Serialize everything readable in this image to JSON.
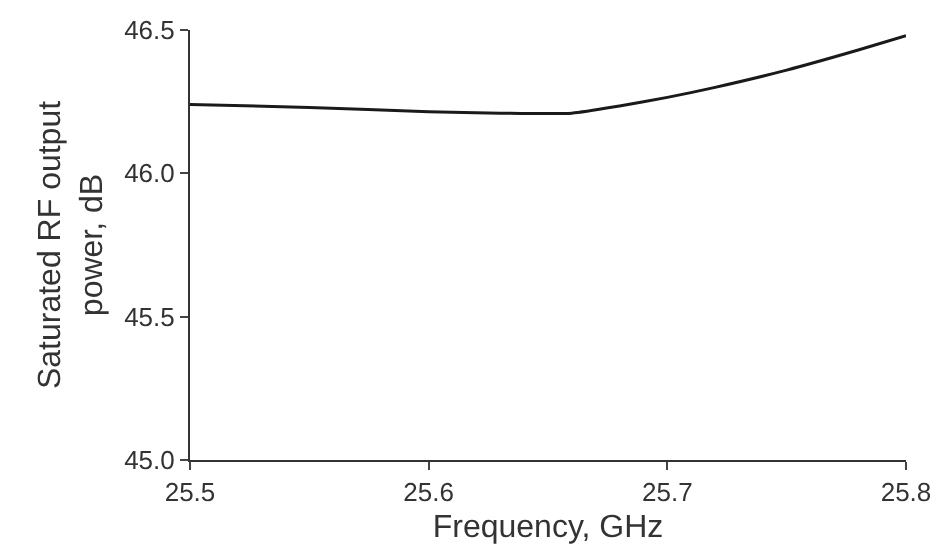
{
  "chart_data": {
    "type": "line",
    "xlabel": "Frequency, GHz",
    "ylabel": "Saturated RF output\npower, dB",
    "x": [
      25.5,
      25.55,
      25.6,
      25.63,
      25.66,
      25.68,
      25.7,
      25.72,
      25.75,
      25.78,
      25.8
    ],
    "series": [
      {
        "color": "#1a1a1a",
        "values": [
          46.24,
          46.23,
          46.215,
          46.21,
          46.21,
          46.235,
          46.265,
          46.3,
          46.36,
          46.43,
          46.48
        ]
      }
    ],
    "xlim": [
      25.5,
      25.8
    ],
    "ylim": [
      45.0,
      46.5
    ],
    "xticks": [
      25.5,
      25.6,
      25.7,
      25.8
    ],
    "yticks": [
      {
        "value": 45.0,
        "label": "45.0"
      },
      {
        "value": 45.5,
        "label": "45.5"
      },
      {
        "value": 46.0,
        "label": "46.0"
      },
      {
        "value": 46.5,
        "label": "46.5"
      }
    ],
    "marker": "none",
    "line_style": "solid"
  }
}
